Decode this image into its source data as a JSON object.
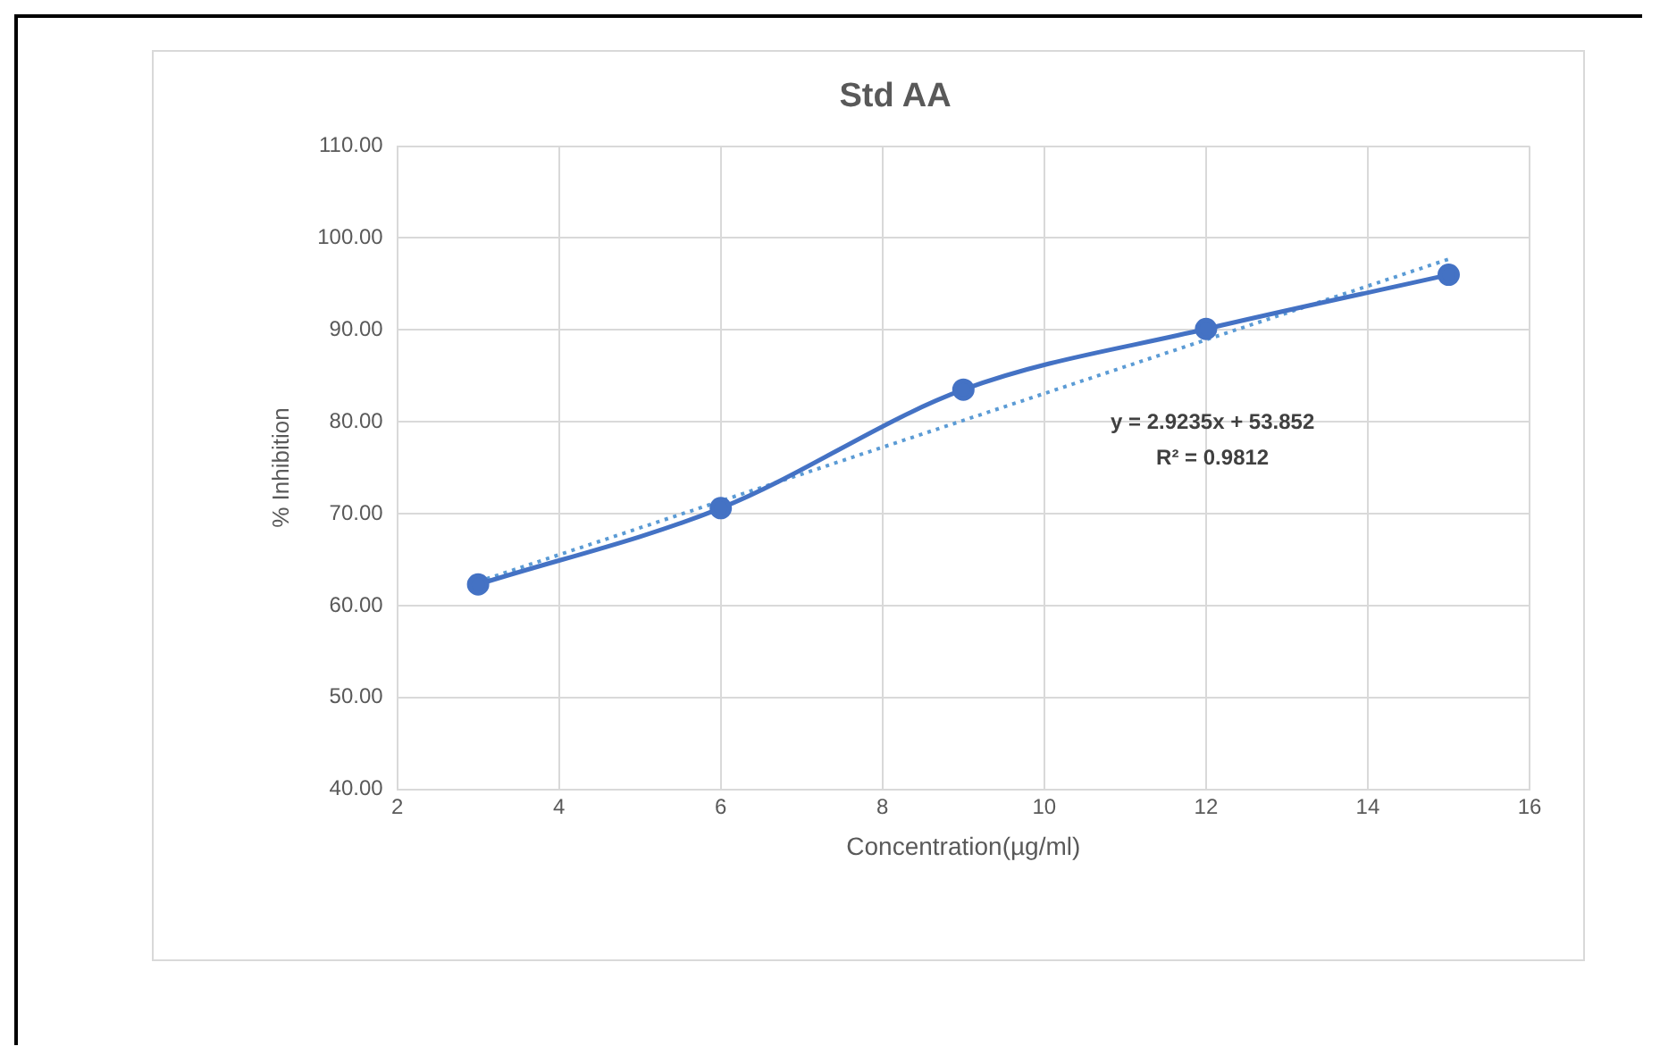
{
  "chart_data": {
    "type": "line",
    "title": "Std AA",
    "xlabel": "Concentration(µg/ml)",
    "ylabel": "% Inhibition",
    "xlim": [
      2,
      16
    ],
    "xticks": [
      2,
      4,
      6,
      8,
      10,
      12,
      14,
      16
    ],
    "ylim": [
      40,
      110
    ],
    "yticks": [
      {
        "value": 40,
        "label": "40.00"
      },
      {
        "value": 50,
        "label": "50.00"
      },
      {
        "value": 60,
        "label": "60.00"
      },
      {
        "value": 70,
        "label": "70.00"
      },
      {
        "value": 80,
        "label": "80.00"
      },
      {
        "value": 90,
        "label": "90.00"
      },
      {
        "value": 100,
        "label": "100.00"
      },
      {
        "value": 110,
        "label": "110.00"
      }
    ],
    "grid": true,
    "legend": false,
    "series": [
      {
        "color": "#4472c4",
        "marker": "circle",
        "line_style": "solid",
        "x": [
          3,
          6,
          9,
          12,
          15
        ],
        "values": [
          62.3,
          70.6,
          83.5,
          90.1,
          96.0
        ]
      },
      {
        "color": "#5b9bd5",
        "marker": "none",
        "line_style": "dotted",
        "x": [
          3,
          15
        ],
        "values": [
          62.6,
          97.7
        ]
      }
    ],
    "annotations": [
      "y = 2.9235x + 53.852",
      "R² = 0.9812"
    ]
  }
}
